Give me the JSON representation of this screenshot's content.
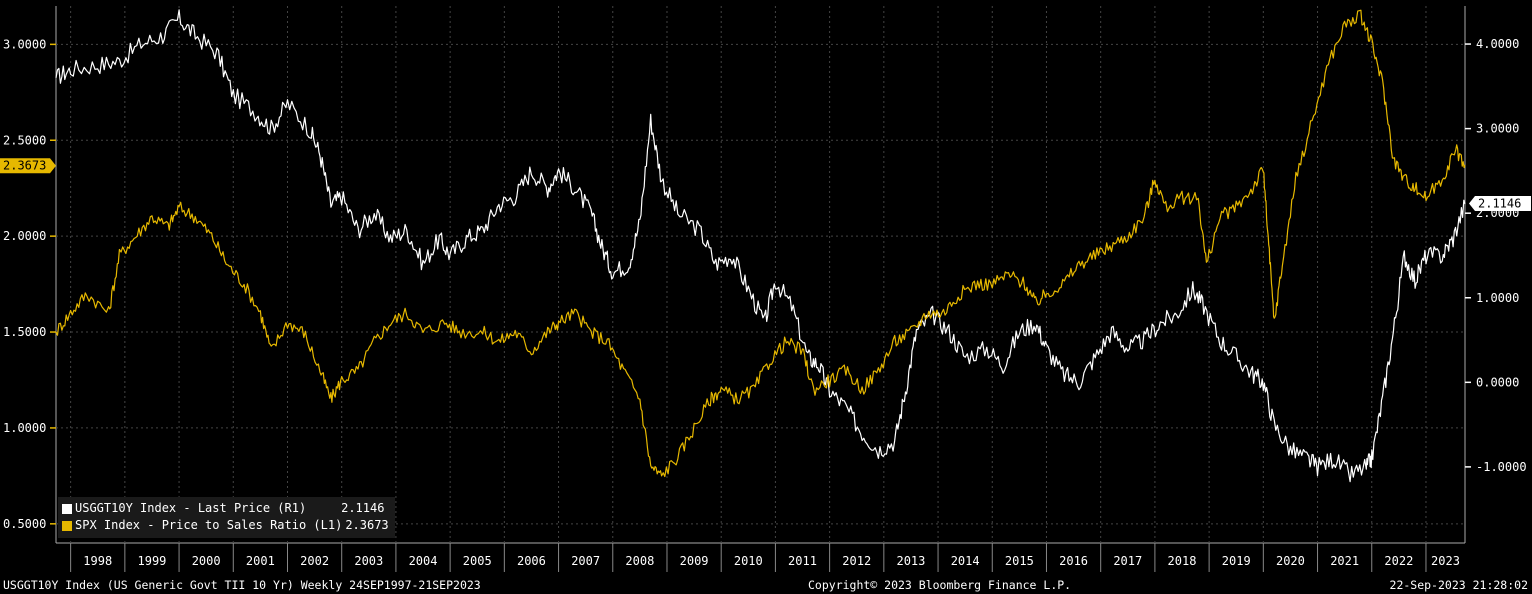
{
  "footer": {
    "left": "USGGT10Y Index (US Generic Govt TII 10 Yr)  Weekly 24SEP1997-21SEP2023",
    "center": "Copyright© 2023 Bloomberg Finance L.P.",
    "right": "22-Sep-2023 21:28:02"
  },
  "legend": [
    {
      "label": "USGGT10Y Index - Last Price (R1)    ",
      "value": "2.1146",
      "color": "#ffffff"
    },
    {
      "label": "SPX Index - Price to Sales Ratio (L1)",
      "value": "2.3673",
      "color": "#e6b800"
    }
  ],
  "chart_data": {
    "type": "line",
    "x_range": [
      1997.73,
      2023.72
    ],
    "x_ticks": [
      "1998",
      "1999",
      "2000",
      "2001",
      "2002",
      "2003",
      "2004",
      "2005",
      "2006",
      "2007",
      "2008",
      "2009",
      "2010",
      "2011",
      "2012",
      "2013",
      "2014",
      "2015",
      "2016",
      "2017",
      "2018",
      "2019",
      "2020",
      "2021",
      "2022",
      "2023"
    ],
    "left_axis": {
      "range": [
        0.4,
        3.2
      ],
      "ticks": [
        "0.5000",
        "1.0000",
        "1.5000",
        "2.0000",
        "2.5000",
        "3.0000"
      ],
      "tick_values": [
        0.5,
        1.0,
        1.5,
        2.0,
        2.5,
        3.0
      ],
      "last_value": "2.3673",
      "color": "#e6b800"
    },
    "right_axis": {
      "range": [
        -1.9,
        4.45
      ],
      "ticks": [
        "-1.0000",
        "0.0000",
        "1.0000",
        "2.0000",
        "3.0000",
        "4.0000"
      ],
      "tick_values": [
        -1,
        0,
        1,
        2,
        3,
        4
      ],
      "last_value": "2.1146",
      "color": "#ffffff"
    },
    "grid": true,
    "legend_position": "bottom-left",
    "series": [
      {
        "name": "USGGT10Y Index - Last Price (R1)",
        "axis": "right",
        "color": "#ffffff",
        "points": [
          [
            1997.73,
            3.6
          ],
          [
            1998.0,
            3.7
          ],
          [
            1998.5,
            3.75
          ],
          [
            1998.9,
            3.8
          ],
          [
            1999.3,
            4.0
          ],
          [
            1999.7,
            4.1
          ],
          [
            2000.0,
            4.3
          ],
          [
            2000.3,
            4.1
          ],
          [
            2000.7,
            3.9
          ],
          [
            2001.0,
            3.4
          ],
          [
            2001.4,
            3.2
          ],
          [
            2001.7,
            3.0
          ],
          [
            2002.0,
            3.3
          ],
          [
            2002.4,
            3.0
          ],
          [
            2002.6,
            2.7
          ],
          [
            2002.8,
            2.1
          ],
          [
            2003.0,
            2.2
          ],
          [
            2003.3,
            1.8
          ],
          [
            2003.6,
            2.0
          ],
          [
            2003.9,
            1.7
          ],
          [
            2004.2,
            1.8
          ],
          [
            2004.5,
            1.4
          ],
          [
            2004.8,
            1.7
          ],
          [
            2005.0,
            1.5
          ],
          [
            2005.3,
            1.7
          ],
          [
            2005.6,
            1.8
          ],
          [
            2005.9,
            2.1
          ],
          [
            2006.2,
            2.2
          ],
          [
            2006.5,
            2.5
          ],
          [
            2006.8,
            2.3
          ],
          [
            2007.0,
            2.5
          ],
          [
            2007.3,
            2.3
          ],
          [
            2007.6,
            2.0
          ],
          [
            2007.8,
            1.6
          ],
          [
            2008.0,
            1.3
          ],
          [
            2008.3,
            1.4
          ],
          [
            2008.5,
            1.9
          ],
          [
            2008.7,
            3.1
          ],
          [
            2008.9,
            2.4
          ],
          [
            2009.2,
            2.0
          ],
          [
            2009.6,
            1.8
          ],
          [
            2009.9,
            1.4
          ],
          [
            2010.2,
            1.5
          ],
          [
            2010.5,
            1.1
          ],
          [
            2010.8,
            0.7
          ],
          [
            2011.0,
            1.2
          ],
          [
            2011.3,
            0.9
          ],
          [
            2011.6,
            0.3
          ],
          [
            2011.8,
            0.2
          ],
          [
            2012.0,
            -0.1
          ],
          [
            2012.3,
            -0.3
          ],
          [
            2012.6,
            -0.6
          ],
          [
            2012.9,
            -0.8
          ],
          [
            2013.2,
            -0.7
          ],
          [
            2013.4,
            -0.1
          ],
          [
            2013.6,
            0.6
          ],
          [
            2013.9,
            0.8
          ],
          [
            2014.2,
            0.6
          ],
          [
            2014.5,
            0.3
          ],
          [
            2014.9,
            0.4
          ],
          [
            2015.2,
            0.2
          ],
          [
            2015.5,
            0.6
          ],
          [
            2015.8,
            0.7
          ],
          [
            2016.0,
            0.4
          ],
          [
            2016.3,
            0.1
          ],
          [
            2016.6,
            0.0
          ],
          [
            2016.9,
            0.3
          ],
          [
            2017.2,
            0.6
          ],
          [
            2017.5,
            0.4
          ],
          [
            2017.8,
            0.5
          ],
          [
            2018.1,
            0.7
          ],
          [
            2018.4,
            0.8
          ],
          [
            2018.7,
            1.1
          ],
          [
            2018.9,
            0.9
          ],
          [
            2019.2,
            0.5
          ],
          [
            2019.5,
            0.3
          ],
          [
            2019.8,
            0.1
          ],
          [
            2020.0,
            0.0
          ],
          [
            2020.2,
            -0.5
          ],
          [
            2020.5,
            -0.8
          ],
          [
            2020.8,
            -0.9
          ],
          [
            2021.0,
            -1.0
          ],
          [
            2021.3,
            -0.9
          ],
          [
            2021.6,
            -1.1
          ],
          [
            2021.9,
            -1.0
          ],
          [
            2022.0,
            -0.9
          ],
          [
            2022.2,
            -0.2
          ],
          [
            2022.4,
            0.6
          ],
          [
            2022.6,
            1.5
          ],
          [
            2022.8,
            1.2
          ],
          [
            2023.0,
            1.5
          ],
          [
            2023.3,
            1.5
          ],
          [
            2023.5,
            1.7
          ],
          [
            2023.72,
            2.11
          ]
        ]
      },
      {
        "name": "SPX Index - Price to Sales Ratio (L1)",
        "axis": "left",
        "color": "#e6b800",
        "points": [
          [
            1997.73,
            1.5
          ],
          [
            1998.0,
            1.6
          ],
          [
            1998.3,
            1.7
          ],
          [
            1998.7,
            1.6
          ],
          [
            1998.9,
            1.9
          ],
          [
            1999.2,
            2.0
          ],
          [
            1999.5,
            2.1
          ],
          [
            1999.8,
            2.05
          ],
          [
            2000.0,
            2.15
          ],
          [
            2000.3,
            2.1
          ],
          [
            2000.6,
            2.0
          ],
          [
            2000.9,
            1.85
          ],
          [
            2001.2,
            1.75
          ],
          [
            2001.5,
            1.6
          ],
          [
            2001.7,
            1.4
          ],
          [
            2002.0,
            1.55
          ],
          [
            2002.3,
            1.5
          ],
          [
            2002.6,
            1.3
          ],
          [
            2002.8,
            1.15
          ],
          [
            2003.0,
            1.25
          ],
          [
            2003.3,
            1.3
          ],
          [
            2003.6,
            1.45
          ],
          [
            2003.9,
            1.55
          ],
          [
            2004.2,
            1.6
          ],
          [
            2004.5,
            1.5
          ],
          [
            2004.9,
            1.55
          ],
          [
            2005.2,
            1.5
          ],
          [
            2005.6,
            1.5
          ],
          [
            2005.9,
            1.45
          ],
          [
            2006.2,
            1.5
          ],
          [
            2006.5,
            1.4
          ],
          [
            2006.8,
            1.5
          ],
          [
            2007.0,
            1.55
          ],
          [
            2007.3,
            1.6
          ],
          [
            2007.6,
            1.5
          ],
          [
            2007.9,
            1.45
          ],
          [
            2008.2,
            1.3
          ],
          [
            2008.5,
            1.15
          ],
          [
            2008.7,
            0.8
          ],
          [
            2008.9,
            0.75
          ],
          [
            2009.2,
            0.85
          ],
          [
            2009.5,
            1.0
          ],
          [
            2009.8,
            1.15
          ],
          [
            2010.0,
            1.2
          ],
          [
            2010.3,
            1.15
          ],
          [
            2010.6,
            1.2
          ],
          [
            2010.9,
            1.35
          ],
          [
            2011.2,
            1.45
          ],
          [
            2011.5,
            1.4
          ],
          [
            2011.7,
            1.2
          ],
          [
            2012.0,
            1.25
          ],
          [
            2012.3,
            1.3
          ],
          [
            2012.6,
            1.2
          ],
          [
            2012.9,
            1.3
          ],
          [
            2013.2,
            1.45
          ],
          [
            2013.5,
            1.5
          ],
          [
            2013.8,
            1.6
          ],
          [
            2014.1,
            1.6
          ],
          [
            2014.4,
            1.7
          ],
          [
            2014.7,
            1.75
          ],
          [
            2015.0,
            1.75
          ],
          [
            2015.3,
            1.8
          ],
          [
            2015.6,
            1.75
          ],
          [
            2015.8,
            1.65
          ],
          [
            2016.0,
            1.7
          ],
          [
            2016.3,
            1.75
          ],
          [
            2016.6,
            1.85
          ],
          [
            2016.9,
            1.9
          ],
          [
            2017.2,
            1.95
          ],
          [
            2017.5,
            2.0
          ],
          [
            2017.8,
            2.1
          ],
          [
            2018.0,
            2.3
          ],
          [
            2018.2,
            2.15
          ],
          [
            2018.5,
            2.2
          ],
          [
            2018.8,
            2.2
          ],
          [
            2018.95,
            1.85
          ],
          [
            2019.2,
            2.1
          ],
          [
            2019.5,
            2.15
          ],
          [
            2019.8,
            2.25
          ],
          [
            2020.0,
            2.35
          ],
          [
            2020.1,
            1.95
          ],
          [
            2020.2,
            1.55
          ],
          [
            2020.35,
            1.85
          ],
          [
            2020.6,
            2.3
          ],
          [
            2020.9,
            2.6
          ],
          [
            2021.2,
            2.9
          ],
          [
            2021.5,
            3.1
          ],
          [
            2021.8,
            3.15
          ],
          [
            2022.0,
            3.0
          ],
          [
            2022.2,
            2.8
          ],
          [
            2022.4,
            2.4
          ],
          [
            2022.6,
            2.3
          ],
          [
            2022.8,
            2.25
          ],
          [
            2023.0,
            2.2
          ],
          [
            2023.3,
            2.3
          ],
          [
            2023.55,
            2.45
          ],
          [
            2023.72,
            2.37
          ]
        ]
      }
    ]
  }
}
